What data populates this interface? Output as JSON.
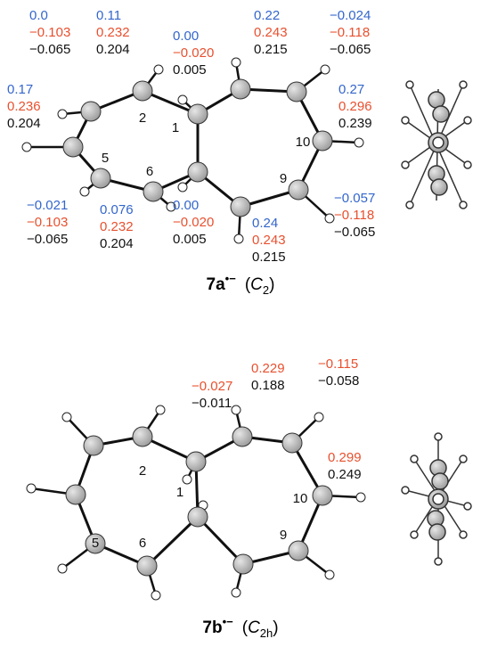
{
  "molecules": [
    {
      "line_colors": [
        "#3366cc",
        "#e8502f",
        "#111111"
      ],
      "groups": [
        {
          "values": [
            "0.17",
            "0.236",
            "0.204"
          ]
        },
        {
          "values": [
            "0.0",
            "−0.103",
            "−0.065"
          ]
        },
        {
          "values": [
            "0.11",
            "0.232",
            "0.204"
          ]
        },
        {
          "values": [
            "0.00",
            "−0.020",
            "0.005"
          ]
        },
        {
          "values": [
            "0.22",
            "0.243",
            "0.215"
          ]
        },
        {
          "values": [
            "−0.024",
            "−0.118",
            "−0.065"
          ]
        },
        {
          "values": [
            "0.27",
            "0.296",
            "0.239"
          ]
        },
        {
          "values": [
            "−0.021",
            "−0.103",
            "−0.065"
          ]
        },
        {
          "values": [
            "0.076",
            "0.232",
            "0.204"
          ]
        },
        {
          "values": [
            "0.00",
            "−0.020",
            "0.005"
          ]
        },
        {
          "values": [
            "0.24",
            "0.243",
            "0.215"
          ]
        },
        {
          "values": [
            "−0.057",
            "−0.118",
            "−0.065"
          ]
        }
      ],
      "atom_numbers": [
        "2",
        "1",
        "5",
        "6",
        "10",
        "9"
      ],
      "caption": {
        "label": "7a",
        "charge": "•−",
        "group": "C",
        "sub": "2"
      }
    },
    {
      "line_colors": [
        "#e8502f",
        "#111111"
      ],
      "groups": [
        {
          "values": [
            "−0.027",
            "−0.011"
          ]
        },
        {
          "values": [
            "0.229",
            "0.188"
          ]
        },
        {
          "values": [
            "−0.115",
            "−0.058"
          ]
        },
        {
          "values": [
            "0.299",
            "0.249"
          ]
        }
      ],
      "atom_numbers": [
        "2",
        "1",
        "5",
        "6",
        "10",
        "9"
      ],
      "caption": {
        "label": "7b",
        "charge": "•−",
        "group": "C",
        "sub": "2h"
      }
    }
  ]
}
